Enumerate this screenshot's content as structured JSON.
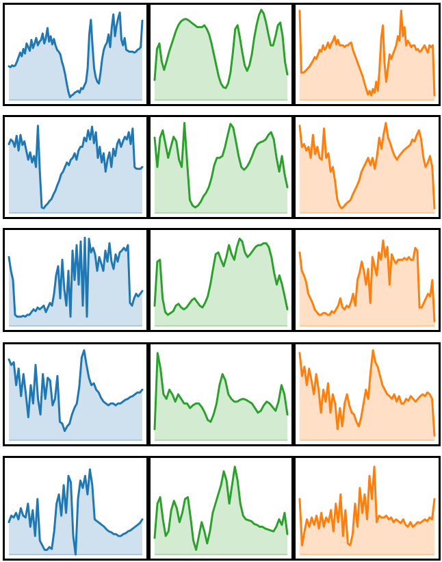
{
  "colors": {
    "blue": {
      "line": "#1f77b4",
      "fill": "#cfe0ef",
      "base": "#a9c8e3"
    },
    "green": {
      "line": "#2ca02c",
      "fill": "#d3ecd1",
      "base": "#b0dcab"
    },
    "orange": {
      "line": "#ff7f0e",
      "fill": "#ffe0c6",
      "base": "#ffc999"
    }
  },
  "chart_data": [
    {
      "type": "area",
      "row": 1,
      "col": 1,
      "color": "blue",
      "ylim": [
        0,
        1
      ],
      "axes_visible": false,
      "values": [
        0.37,
        0.36,
        0.38,
        0.37,
        0.38,
        0.42,
        0.47,
        0.52,
        0.48,
        0.56,
        0.51,
        0.62,
        0.58,
        0.54,
        0.66,
        0.57,
        0.62,
        0.68,
        0.6,
        0.64,
        0.66,
        0.73,
        0.62,
        0.68,
        0.79,
        0.64,
        0.7,
        0.61,
        0.67,
        0.6,
        0.55,
        0.53,
        0.5,
        0.42,
        0.36,
        0.28,
        0.18,
        0.09,
        0.03,
        0.05,
        0.06,
        0.08,
        0.09,
        0.1,
        0.08,
        0.13,
        0.12,
        0.16,
        0.2,
        0.35,
        0.72,
        0.88,
        0.6,
        0.35,
        0.25,
        0.2,
        0.18,
        0.3,
        0.45,
        0.55,
        0.6,
        0.63,
        0.72,
        0.58,
        0.8,
        0.94,
        0.7,
        0.82,
        0.9,
        0.96,
        0.66,
        0.6,
        0.68,
        0.55,
        0.54,
        0.53,
        0.53,
        0.53,
        0.52,
        0.53,
        0.55,
        0.56,
        0.58,
        0.87
      ]
    },
    {
      "type": "area",
      "row": 1,
      "col": 2,
      "color": "green",
      "ylim": [
        0,
        1
      ],
      "axes_visible": false,
      "values": [
        0.22,
        0.56,
        0.62,
        0.42,
        0.33,
        0.42,
        0.52,
        0.6,
        0.68,
        0.76,
        0.82,
        0.86,
        0.88,
        0.89,
        0.88,
        0.86,
        0.84,
        0.82,
        0.8,
        0.8,
        0.8,
        0.82,
        0.78,
        0.72,
        0.62,
        0.5,
        0.38,
        0.26,
        0.18,
        0.14,
        0.13,
        0.18,
        0.3,
        0.52,
        0.78,
        0.82,
        0.68,
        0.52,
        0.38,
        0.32,
        0.38,
        0.5,
        0.68,
        0.82,
        0.93,
        0.99,
        0.95,
        0.85,
        0.72,
        0.6,
        0.6,
        0.7,
        0.82,
        0.85,
        0.7,
        0.42,
        0.28
      ]
    },
    {
      "type": "area",
      "row": 1,
      "col": 3,
      "color": "orange",
      "ylim": [
        0,
        1
      ],
      "axes_visible": false,
      "values": [
        0.98,
        0.3,
        0.3,
        0.31,
        0.33,
        0.35,
        0.37,
        0.4,
        0.43,
        0.47,
        0.45,
        0.5,
        0.55,
        0.53,
        0.6,
        0.55,
        0.58,
        0.63,
        0.57,
        0.62,
        0.65,
        0.7,
        0.61,
        0.66,
        0.6,
        0.6,
        0.6,
        0.58,
        0.6,
        0.6,
        0.62,
        0.63,
        0.55,
        0.5,
        0.45,
        0.4,
        0.35,
        0.3,
        0.25,
        0.18,
        0.12,
        0.06,
        0.1,
        0.05,
        0.12,
        0.08,
        0.2,
        0.1,
        0.35,
        0.68,
        0.82,
        0.4,
        0.2,
        0.35,
        0.5,
        0.45,
        0.5,
        0.55,
        0.6,
        0.7,
        0.65,
        0.98,
        0.7,
        0.8,
        0.6,
        0.65,
        0.62,
        0.58,
        0.6,
        0.6,
        0.55,
        0.56,
        0.53,
        0.54,
        0.57,
        0.6,
        0.56,
        0.52,
        0.6,
        0.58,
        0.6,
        0.05
      ]
    },
    {
      "type": "area",
      "row": 2,
      "col": 1,
      "color": "blue",
      "ylim": [
        0,
        1
      ],
      "axes_visible": false,
      "values": [
        0.75,
        0.8,
        0.78,
        0.72,
        0.84,
        0.68,
        0.85,
        0.74,
        0.78,
        0.68,
        0.58,
        0.66,
        0.55,
        0.62,
        0.5,
        0.95,
        0.45,
        0.06,
        0.05,
        0.08,
        0.1,
        0.13,
        0.15,
        0.2,
        0.24,
        0.3,
        0.35,
        0.42,
        0.45,
        0.5,
        0.55,
        0.52,
        0.58,
        0.6,
        0.65,
        0.58,
        0.68,
        0.72,
        0.72,
        0.82,
        0.78,
        0.9,
        0.8,
        0.94,
        0.76,
        0.88,
        0.6,
        0.72,
        0.55,
        0.65,
        0.45,
        0.58,
        0.66,
        0.5,
        0.7,
        0.62,
        0.75,
        0.8,
        0.72,
        0.78,
        0.83,
        0.8,
        0.88,
        0.75,
        0.92,
        0.5,
        0.48,
        0.48,
        0.48,
        0.5
      ]
    },
    {
      "type": "area",
      "row": 2,
      "col": 2,
      "color": "green",
      "ylim": [
        0,
        1
      ],
      "axes_visible": false,
      "values": [
        0.82,
        0.5,
        0.82,
        0.9,
        0.75,
        0.6,
        0.72,
        0.83,
        0.78,
        0.58,
        0.5,
        0.98,
        0.55,
        0.14,
        0.08,
        0.06,
        0.08,
        0.12,
        0.18,
        0.22,
        0.28,
        0.38,
        0.52,
        0.6,
        0.6,
        0.62,
        0.72,
        0.85,
        0.97,
        0.93,
        0.78,
        0.62,
        0.5,
        0.47,
        0.5,
        0.55,
        0.62,
        0.7,
        0.75,
        0.77,
        0.78,
        0.8,
        0.85,
        0.88,
        0.8,
        0.6,
        0.45,
        0.62,
        0.42,
        0.28
      ]
    },
    {
      "type": "area",
      "row": 2,
      "col": 3,
      "color": "orange",
      "ylim": [
        0,
        1
      ],
      "axes_visible": false,
      "values": [
        0.95,
        0.72,
        0.75,
        0.68,
        0.72,
        0.6,
        0.85,
        0.64,
        0.72,
        0.6,
        0.58,
        0.92,
        0.6,
        0.65,
        0.45,
        0.5,
        0.35,
        0.15,
        0.08,
        0.05,
        0.07,
        0.1,
        0.12,
        0.14,
        0.2,
        0.25,
        0.3,
        0.36,
        0.45,
        0.5,
        0.55,
        0.6,
        0.52,
        0.6,
        0.48,
        0.62,
        0.82,
        0.7,
        0.86,
        0.98,
        0.82,
        0.76,
        0.68,
        0.62,
        0.58,
        0.62,
        0.65,
        0.68,
        0.7,
        0.72,
        0.74,
        0.8,
        0.78,
        0.85,
        0.9,
        0.8,
        0.6,
        0.5,
        0.55,
        0.62,
        0.5,
        0.05
      ]
    },
    {
      "type": "area",
      "row": 3,
      "col": 1,
      "color": "blue",
      "ylim": [
        0,
        1
      ],
      "axes_visible": false,
      "values": [
        0.75,
        0.6,
        0.5,
        0.12,
        0.1,
        0.1,
        0.1,
        0.11,
        0.1,
        0.12,
        0.12,
        0.15,
        0.18,
        0.16,
        0.2,
        0.18,
        0.2,
        0.22,
        0.15,
        0.2,
        0.25,
        0.22,
        0.35,
        0.55,
        0.65,
        0.3,
        0.72,
        0.4,
        0.22,
        0.6,
        0.1,
        0.82,
        0.5,
        0.88,
        0.45,
        0.92,
        0.22,
        0.96,
        0.1,
        0.95,
        0.8,
        0.85,
        0.78,
        0.6,
        0.75,
        0.68,
        0.6,
        0.82,
        0.7,
        0.9,
        0.7,
        0.62,
        0.78,
        0.7,
        0.8,
        0.82,
        0.85,
        0.82,
        0.88,
        0.25,
        0.22,
        0.3,
        0.35,
        0.32,
        0.35,
        0.38
      ]
    },
    {
      "type": "area",
      "row": 3,
      "col": 2,
      "color": "green",
      "ylim": [
        0,
        1
      ],
      "axes_visible": false,
      "values": [
        0.22,
        0.7,
        0.72,
        0.3,
        0.15,
        0.12,
        0.14,
        0.16,
        0.22,
        0.24,
        0.2,
        0.18,
        0.2,
        0.24,
        0.28,
        0.3,
        0.26,
        0.22,
        0.2,
        0.25,
        0.32,
        0.45,
        0.62,
        0.78,
        0.8,
        0.72,
        0.65,
        0.75,
        0.88,
        0.78,
        0.72,
        0.86,
        0.95,
        0.92,
        0.8,
        0.75,
        0.78,
        0.82,
        0.86,
        0.88,
        0.88,
        0.9,
        0.9,
        0.86,
        0.75,
        0.58,
        0.45,
        0.55,
        0.45,
        0.32,
        0.18
      ]
    },
    {
      "type": "area",
      "row": 3,
      "col": 3,
      "color": "orange",
      "ylim": [
        0,
        1
      ],
      "axes_visible": false,
      "values": [
        0.8,
        0.6,
        0.55,
        0.48,
        0.35,
        0.3,
        0.25,
        0.18,
        0.15,
        0.12,
        0.12,
        0.14,
        0.14,
        0.12,
        0.12,
        0.16,
        0.14,
        0.18,
        0.22,
        0.3,
        0.2,
        0.18,
        0.22,
        0.2,
        0.26,
        0.35,
        0.22,
        0.5,
        0.58,
        0.7,
        0.6,
        0.45,
        0.62,
        0.25,
        0.75,
        0.65,
        0.55,
        0.8,
        0.72,
        0.93,
        0.75,
        0.86,
        0.45,
        0.78,
        0.72,
        0.68,
        0.72,
        0.72,
        0.72,
        0.74,
        0.72,
        0.75,
        0.72,
        0.72,
        0.85,
        0.82,
        0.2,
        0.2,
        0.25,
        0.3,
        0.35,
        0.32,
        0.5,
        0.05
      ]
    },
    {
      "type": "area",
      "row": 4,
      "col": 1,
      "color": "blue",
      "ylim": [
        0,
        1
      ],
      "axes_visible": false,
      "values": [
        0.88,
        0.82,
        0.85,
        0.6,
        0.78,
        0.48,
        0.72,
        0.5,
        0.25,
        0.6,
        0.4,
        0.82,
        0.45,
        0.28,
        0.72,
        0.45,
        0.68,
        0.65,
        0.38,
        0.45,
        0.7,
        0.2,
        0.18,
        0.1,
        0.15,
        0.18,
        0.28,
        0.35,
        0.4,
        0.58,
        0.9,
        0.98,
        0.82,
        0.68,
        0.6,
        0.62,
        0.55,
        0.52,
        0.46,
        0.42,
        0.4,
        0.38,
        0.4,
        0.4,
        0.38,
        0.4,
        0.4,
        0.42,
        0.44,
        0.45,
        0.47,
        0.48,
        0.5,
        0.52,
        0.52,
        0.55
      ]
    },
    {
      "type": "area",
      "row": 4,
      "col": 2,
      "color": "green",
      "ylim": [
        0,
        1
      ],
      "axes_visible": false,
      "values": [
        0.12,
        0.95,
        0.78,
        0.5,
        0.45,
        0.55,
        0.5,
        0.42,
        0.5,
        0.45,
        0.4,
        0.4,
        0.35,
        0.38,
        0.4,
        0.4,
        0.36,
        0.3,
        0.22,
        0.2,
        0.28,
        0.4,
        0.6,
        0.72,
        0.65,
        0.5,
        0.45,
        0.42,
        0.42,
        0.44,
        0.45,
        0.44,
        0.42,
        0.4,
        0.35,
        0.3,
        0.32,
        0.38,
        0.42,
        0.4,
        0.36,
        0.32,
        0.42,
        0.6,
        0.5,
        0.28
      ]
    },
    {
      "type": "area",
      "row": 4,
      "col": 3,
      "color": "orange",
      "ylim": [
        0,
        1
      ],
      "axes_visible": false,
      "values": [
        0.95,
        0.7,
        0.8,
        0.6,
        0.78,
        0.65,
        0.5,
        0.72,
        0.55,
        0.3,
        0.55,
        0.42,
        0.62,
        0.3,
        0.5,
        0.4,
        0.12,
        0.35,
        0.15,
        0.4,
        0.5,
        0.38,
        0.3,
        0.28,
        0.2,
        0.15,
        0.25,
        0.4,
        0.55,
        0.45,
        0.75,
        0.98,
        0.85,
        0.8,
        0.7,
        0.6,
        0.55,
        0.5,
        0.48,
        0.45,
        0.5,
        0.42,
        0.48,
        0.4,
        0.4,
        0.45,
        0.43,
        0.48,
        0.45,
        0.42,
        0.45,
        0.48,
        0.5,
        0.48,
        0.52,
        0.5,
        0.45,
        0.05
      ]
    },
    {
      "type": "area",
      "row": 5,
      "col": 1,
      "color": "blue",
      "ylim": [
        0,
        1
      ],
      "axes_visible": false,
      "values": [
        0.35,
        0.42,
        0.4,
        0.45,
        0.38,
        0.5,
        0.42,
        0.4,
        0.55,
        0.3,
        0.48,
        0.2,
        0.6,
        0.15,
        0.1,
        0.05,
        0.05,
        0.08,
        0.06,
        0.25,
        0.55,
        0.65,
        0.42,
        0.75,
        0.45,
        0.85,
        0.78,
        0.2,
        0.0,
        0.6,
        0.8,
        0.72,
        0.85,
        0.65,
        0.92,
        0.75,
        0.38,
        0.36,
        0.34,
        0.32,
        0.3,
        0.27,
        0.25,
        0.24,
        0.22,
        0.22,
        0.2,
        0.2,
        0.22,
        0.23,
        0.25,
        0.26,
        0.28,
        0.3,
        0.32,
        0.34,
        0.38
      ]
    },
    {
      "type": "area",
      "row": 5,
      "col": 2,
      "color": "green",
      "ylim": [
        0,
        1
      ],
      "axes_visible": false,
      "values": [
        0.18,
        0.55,
        0.62,
        0.38,
        0.2,
        0.25,
        0.48,
        0.58,
        0.5,
        0.35,
        0.45,
        0.6,
        0.62,
        0.4,
        0.15,
        0.05,
        0.2,
        0.35,
        0.25,
        0.12,
        0.25,
        0.45,
        0.55,
        0.65,
        0.75,
        0.9,
        0.8,
        0.55,
        0.75,
        0.95,
        0.8,
        0.55,
        0.42,
        0.38,
        0.37,
        0.36,
        0.33,
        0.32,
        0.3,
        0.3,
        0.28,
        0.27,
        0.26,
        0.25,
        0.3,
        0.38,
        0.32,
        0.45,
        0.22
      ]
    },
    {
      "type": "area",
      "row": 5,
      "col": 3,
      "color": "orange",
      "ylim": [
        0,
        1
      ],
      "axes_visible": false,
      "values": [
        0.6,
        0.1,
        0.25,
        0.38,
        0.3,
        0.4,
        0.32,
        0.42,
        0.28,
        0.45,
        0.3,
        0.4,
        0.35,
        0.48,
        0.25,
        0.55,
        0.35,
        0.65,
        0.2,
        0.48,
        0.12,
        0.1,
        0.22,
        0.55,
        0.3,
        0.72,
        0.45,
        0.65,
        0.38,
        0.85,
        0.6,
        0.95,
        0.35,
        0.42,
        0.4,
        0.4,
        0.42,
        0.38,
        0.4,
        0.35,
        0.38,
        0.36,
        0.34,
        0.38,
        0.32,
        0.3,
        0.35,
        0.3,
        0.32,
        0.35,
        0.34,
        0.36,
        0.38,
        0.36,
        0.4,
        0.38,
        0.6
      ]
    }
  ]
}
